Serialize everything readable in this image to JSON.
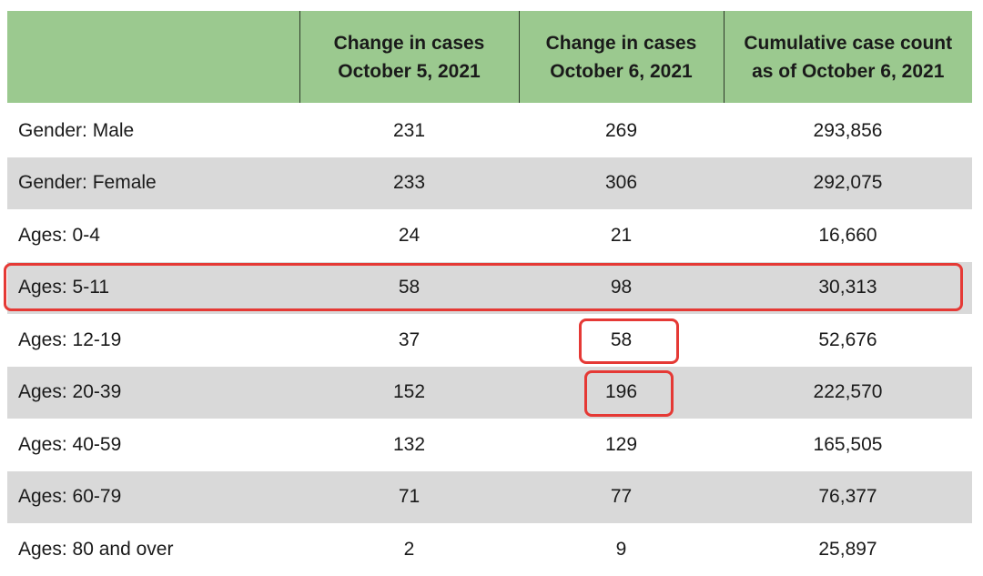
{
  "table": {
    "headers": [
      {
        "line1": "",
        "line2": ""
      },
      {
        "line1": "Change in cases",
        "line2": "October 5, 2021"
      },
      {
        "line1": "Change in cases",
        "line2": "October 6, 2021"
      },
      {
        "line1": "Cumulative case count",
        "line2": "as of October 6, 2021"
      }
    ],
    "rows": [
      {
        "label": "Gender: Male",
        "oct5": "231",
        "oct6": "269",
        "cumulative": "293,856"
      },
      {
        "label": "Gender: Female",
        "oct5": "233",
        "oct6": "306",
        "cumulative": "292,075"
      },
      {
        "label": "Ages: 0-4",
        "oct5": "24",
        "oct6": "21",
        "cumulative": "16,660"
      },
      {
        "label": "Ages: 5-11",
        "oct5": "58",
        "oct6": "98",
        "cumulative": "30,313"
      },
      {
        "label": "Ages: 12-19",
        "oct5": "37",
        "oct6": "58",
        "cumulative": "52,676"
      },
      {
        "label": "Ages: 20-39",
        "oct5": "152",
        "oct6": "196",
        "cumulative": "222,570"
      },
      {
        "label": "Ages: 40-59",
        "oct5": "132",
        "oct6": "129",
        "cumulative": "165,505"
      },
      {
        "label": "Ages: 60-79",
        "oct5": "71",
        "oct6": "77",
        "cumulative": "76,377"
      },
      {
        "label": "Ages: 80 and over",
        "oct5": "2",
        "oct6": "9",
        "cumulative": "25,897"
      }
    ]
  },
  "colors": {
    "header_bg": "#9bc98f",
    "shaded_row": "#d9d9d9",
    "highlight": "#e53935"
  }
}
